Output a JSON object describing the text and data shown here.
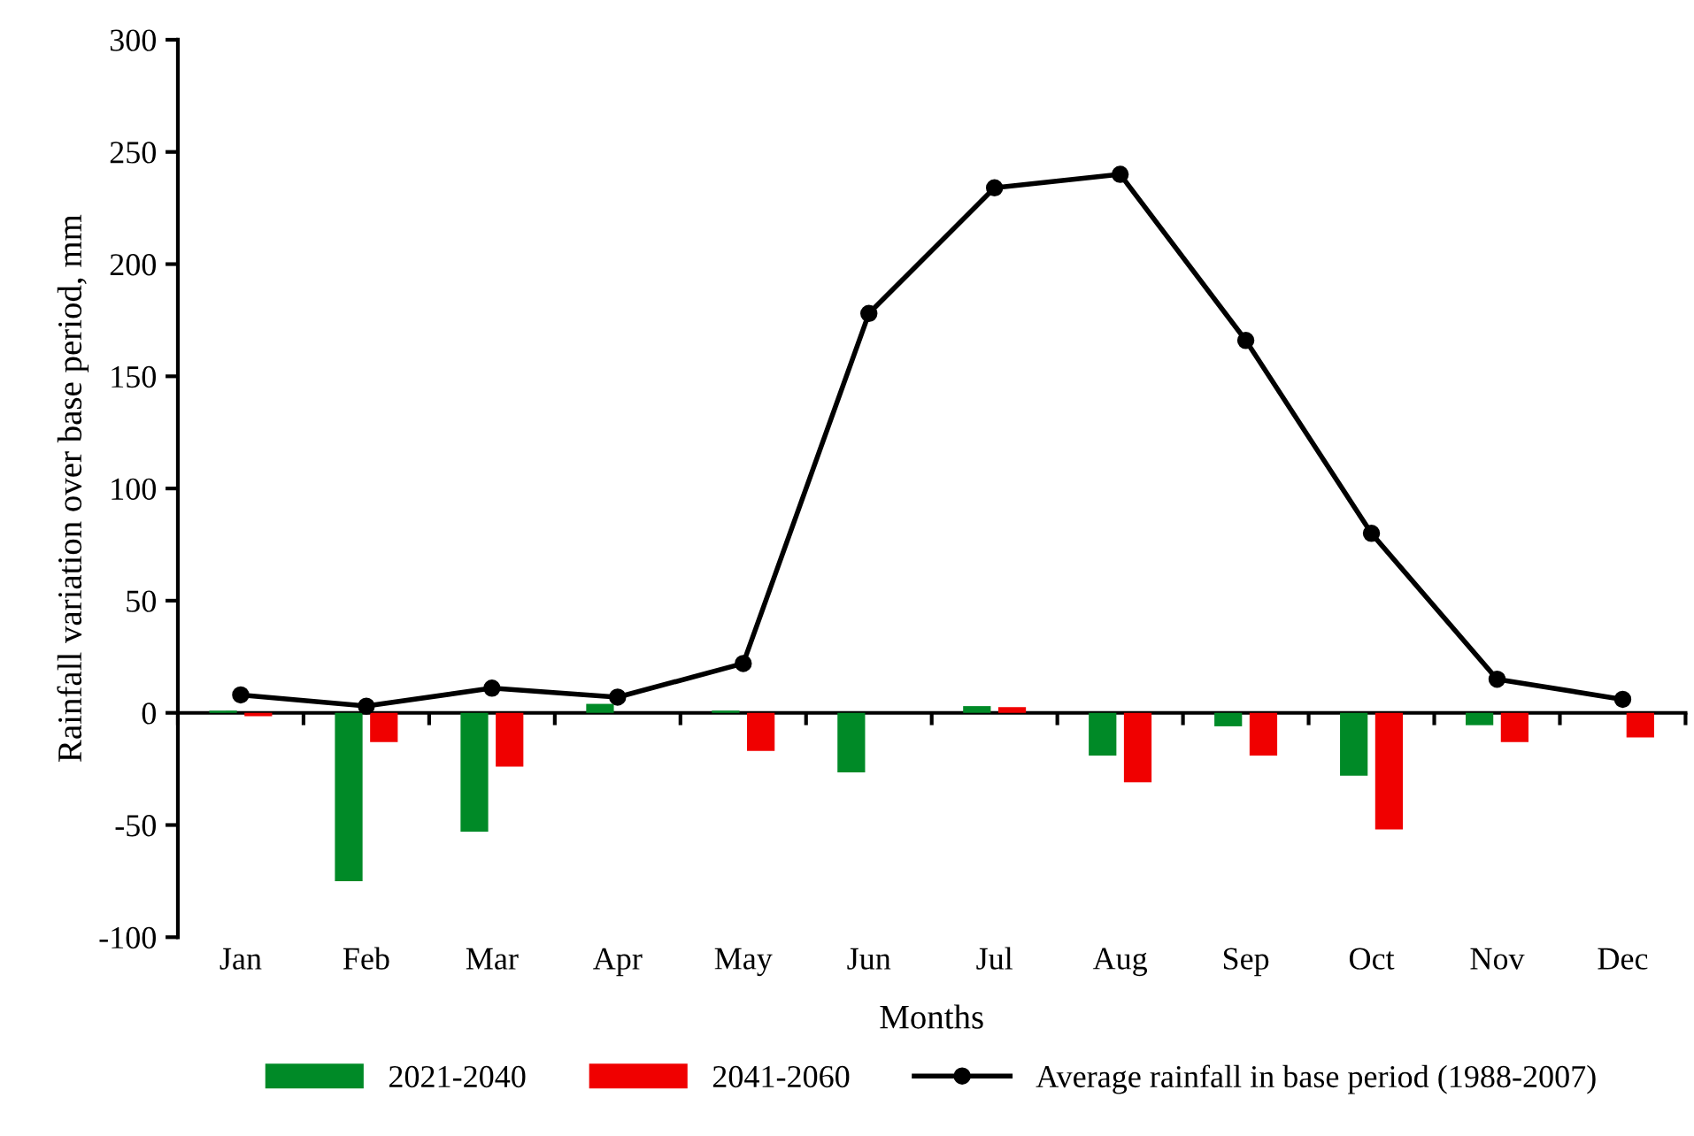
{
  "chart_data": {
    "type": "bar",
    "xlabel": "Months",
    "ylabel": "Rainfall variation over base period, mm",
    "categories": [
      "Jan",
      "Feb",
      "Mar",
      "Apr",
      "May",
      "Jun",
      "Jul",
      "Aug",
      "Sep",
      "Oct",
      "Nov",
      "Dec"
    ],
    "series": [
      {
        "name": "2021-2040",
        "color": "#008a27",
        "values": [
          1,
          -75,
          -53,
          4,
          1,
          -26.5,
          3,
          -19,
          -6,
          -28,
          -5.5,
          0
        ]
      },
      {
        "name": "2041-2060",
        "color": "#f00000",
        "values": [
          -1.5,
          -13,
          -24,
          0,
          -17,
          0,
          2.5,
          -31,
          -19,
          -52,
          -13,
          -11
        ]
      },
      {
        "name": "Average rainfall in base period (1988-2007)",
        "type": "line",
        "color": "#000000",
        "marker": "circle",
        "values": [
          8,
          3,
          11,
          7,
          22,
          178,
          234,
          240,
          166,
          80,
          15,
          6
        ]
      }
    ],
    "ylim": [
      -100,
      300
    ],
    "yticks": [
      -100,
      -50,
      0,
      50,
      100,
      150,
      200,
      250,
      300
    ],
    "legend": "bottom"
  }
}
